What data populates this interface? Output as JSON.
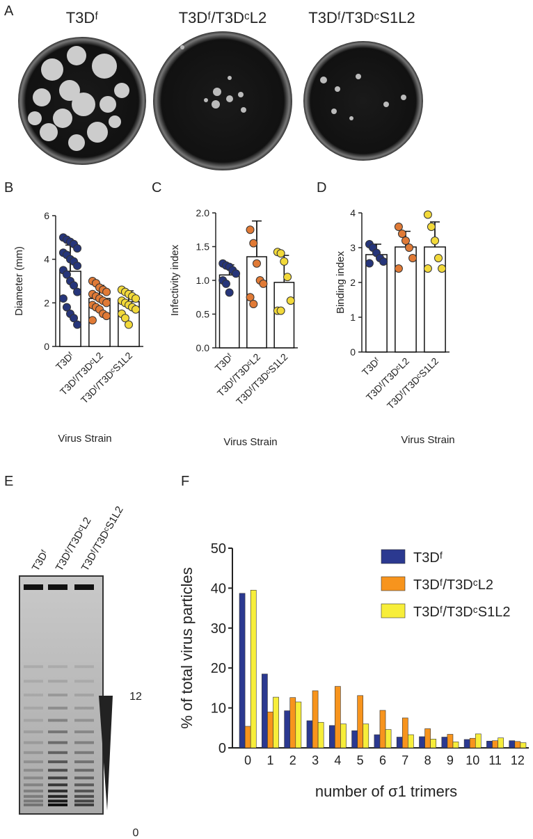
{
  "panel_labels": [
    "A",
    "B",
    "C",
    "D",
    "E",
    "F"
  ],
  "plates": {
    "titles": [
      "T3Dᶠ",
      "T3Dᶠ/T3DᶜL2",
      "T3Dᶠ/T3DᶜS1L2"
    ]
  },
  "gel": {
    "lanes": [
      "T3Dᶠ",
      "T3Dᶠ/T3DᶜL2",
      "T3Dᶠ/T3DᶜS1L2"
    ],
    "scale": [
      12,
      0
    ]
  },
  "chart_data": [
    {
      "type": "dotbar",
      "ylabel": "Diameter (mm)",
      "xlabel": "Virus Strain",
      "categories": [
        "T3Dᶠ",
        "T3Dᶠ/T3DᶜL2",
        "T3Dᶠ/T3DᶜS1L2"
      ],
      "values": [
        3.45,
        2.2,
        2.05
      ],
      "errors": [
        1.2,
        0.6,
        0.5
      ],
      "colors": [
        "#26357a",
        "#e07a36",
        "#f2d93a"
      ],
      "points": [
        [
          5.0,
          4.9,
          4.8,
          4.7,
          4.5,
          4.3,
          4.2,
          4.0,
          3.9,
          3.7,
          3.5,
          3.3,
          3.0,
          2.8,
          2.5,
          2.2,
          1.8,
          1.5,
          1.3,
          1.0
        ],
        [
          3.0,
          2.9,
          2.7,
          2.6,
          2.5,
          2.4,
          2.3,
          2.2,
          2.1,
          2.0,
          1.9,
          1.8,
          1.7,
          1.5,
          1.4,
          1.2
        ],
        [
          2.6,
          2.5,
          2.4,
          2.3,
          2.2,
          2.1,
          2.0,
          1.9,
          1.8,
          1.7,
          1.5,
          1.3,
          1.0
        ]
      ],
      "ylim": [
        0,
        6
      ],
      "yticks": [
        0,
        2,
        4,
        6
      ]
    },
    {
      "type": "dotbar",
      "ylabel": "Infectivity index",
      "xlabel": "Virus Strain",
      "categories": [
        "T3Dᶠ",
        "T3Dᶠ/T3DᶜL2",
        "T3Dᶠ/T3DᶜS1L2"
      ],
      "values": [
        1.08,
        1.35,
        0.97
      ],
      "errors": [
        0.15,
        0.53,
        0.4
      ],
      "colors": [
        "#26357a",
        "#e07a36",
        "#f2d93a"
      ],
      "points": [
        [
          1.25,
          1.22,
          1.2,
          1.15,
          1.1,
          1.0,
          0.95,
          0.82
        ],
        [
          1.75,
          1.55,
          1.25,
          1.0,
          0.95,
          0.75,
          0.65
        ],
        [
          1.42,
          1.4,
          1.28,
          1.05,
          0.7,
          0.55,
          0.55
        ]
      ],
      "ylim": [
        0,
        2
      ],
      "yticks": [
        {
          "value": 0,
          "label": "0.0"
        },
        0.5,
        {
          "value": 1,
          "label": "1.0"
        },
        1.5,
        {
          "value": 2,
          "label": "2.0"
        }
      ]
    },
    {
      "type": "dotbar",
      "ylabel": "Binding index",
      "xlabel": "Virus Strain",
      "categories": [
        "T3Dᶠ",
        "T3Dᶠ/T3DᶜL2",
        "T3Dᶠ/T3DᶜS1L2"
      ],
      "values": [
        2.8,
        3.02,
        3.02
      ],
      "errors": [
        0.3,
        0.45,
        0.72
      ],
      "colors": [
        "#26357a",
        "#e07a36",
        "#f2d93a"
      ],
      "points": [
        [
          3.1,
          3.0,
          2.85,
          2.7,
          2.6,
          2.55
        ],
        [
          3.6,
          3.4,
          3.2,
          3.0,
          2.7,
          2.4
        ],
        [
          3.95,
          3.6,
          3.2,
          2.7,
          2.4,
          2.4
        ]
      ],
      "ylim": [
        0,
        4
      ],
      "yticks": [
        0,
        1,
        2,
        3,
        4
      ]
    },
    {
      "type": "groupedbar",
      "ylabel": "% of total virus particles",
      "xlabel": "number of σ1 trimers",
      "categories": [
        0,
        1,
        2,
        3,
        4,
        5,
        6,
        7,
        8,
        9,
        10,
        11,
        12
      ],
      "series": [
        {
          "name": "T3Dᶠ",
          "color": "#2b3990",
          "values": [
            38.7,
            18.5,
            9.3,
            6.8,
            5.6,
            4.3,
            3.3,
            2.7,
            2.8,
            2.7,
            2.1,
            1.7,
            1.8
          ]
        },
        {
          "name": "T3Dᶠ/T3DᶜL2",
          "color": "#f7941d",
          "values": [
            5.4,
            9.0,
            12.6,
            14.3,
            15.4,
            13.1,
            9.4,
            7.5,
            4.8,
            3.4,
            2.4,
            1.8,
            1.6
          ]
        },
        {
          "name": "T3Dᶠ/T3DᶜS1L2",
          "color": "#f7ee3a",
          "values": [
            39.5,
            12.7,
            11.5,
            6.4,
            6.0,
            6.0,
            4.6,
            3.3,
            2.2,
            1.5,
            3.5,
            2.5,
            1.3
          ]
        }
      ],
      "ylim": [
        0,
        50
      ],
      "yticks": [
        0,
        10,
        20,
        30,
        40,
        50
      ],
      "legend": "upper right"
    }
  ]
}
